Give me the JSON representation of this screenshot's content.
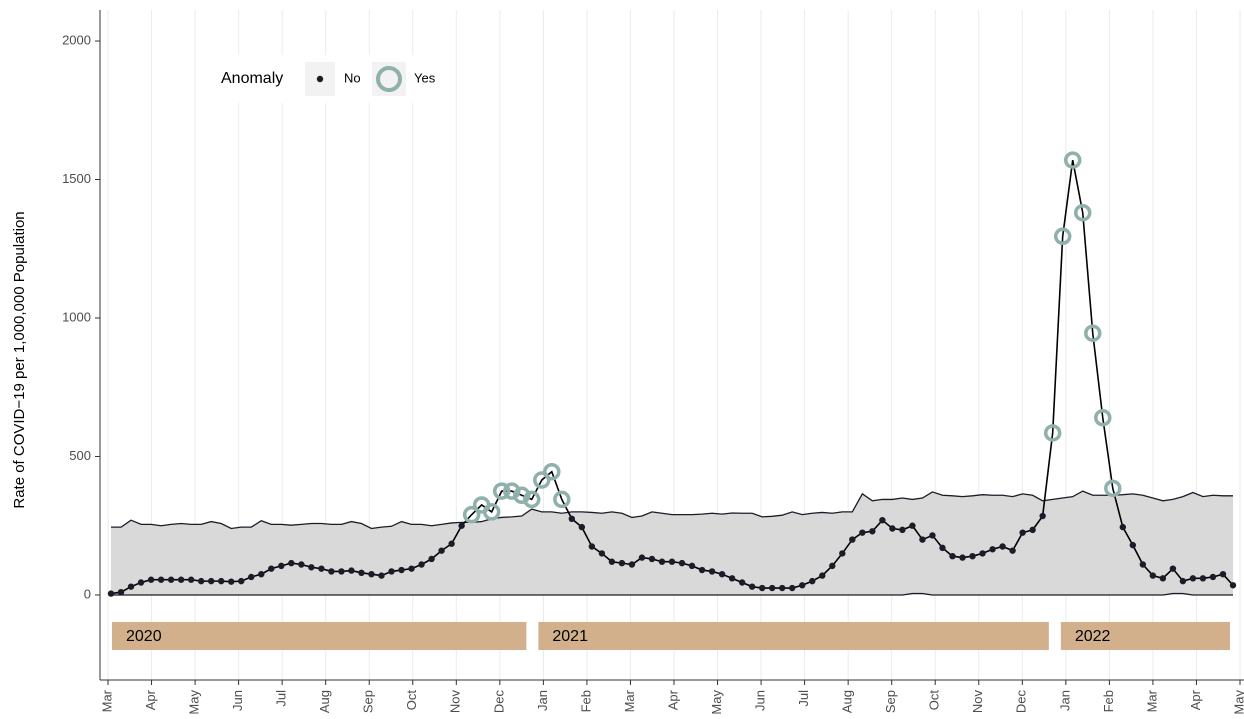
{
  "chart_data": {
    "type": "line",
    "ylabel": "Rate of COVID−19 per 1,000,000 Population",
    "ylim": [
      -307,
      2112
    ],
    "yticks": [
      0,
      500,
      1000,
      1500,
      2000
    ],
    "months": [
      "Mar",
      "Apr",
      "May",
      "Jun",
      "Jul",
      "Aug",
      "Sep",
      "Oct",
      "Nov",
      "Dec",
      "Jan",
      "Feb",
      "Mar",
      "Apr",
      "May",
      "Jun",
      "Jul",
      "Aug",
      "Sep",
      "Oct",
      "Nov",
      "Dec",
      "Jan",
      "Feb",
      "Mar",
      "Apr",
      "May"
    ],
    "years": [
      "2020",
      "2021",
      "2022"
    ],
    "legend": {
      "title": "Anomaly",
      "entries": [
        "No",
        "Yes"
      ]
    },
    "grid": true,
    "line_color": "#1c1c28",
    "band_color": "#d9d9d9",
    "anomaly_color": "#8fb0ab",
    "year_color": "#d2b08c",
    "values": [
      5,
      10,
      30,
      45,
      55,
      55,
      55,
      55,
      55,
      50,
      50,
      50,
      48,
      50,
      65,
      75,
      95,
      105,
      115,
      110,
      100,
      95,
      85,
      85,
      88,
      80,
      75,
      70,
      85,
      90,
      95,
      110,
      130,
      160,
      185,
      250,
      290,
      325,
      300,
      375,
      375,
      360,
      345,
      415,
      445,
      345,
      275,
      245,
      175,
      150,
      120,
      115,
      110,
      135,
      130,
      120,
      120,
      115,
      105,
      90,
      85,
      75,
      60,
      45,
      30,
      25,
      25,
      25,
      25,
      35,
      50,
      70,
      105,
      150,
      200,
      225,
      230,
      270,
      240,
      235,
      250,
      200,
      215,
      170,
      140,
      135,
      140,
      150,
      165,
      175,
      160,
      225,
      235,
      285,
      585,
      1295,
      1570,
      1380,
      945,
      640,
      385,
      245,
      180,
      110,
      70,
      60,
      95,
      50,
      60,
      60,
      65,
      75,
      35
    ],
    "anomaly": [
      false,
      false,
      false,
      false,
      false,
      false,
      false,
      false,
      false,
      false,
      false,
      false,
      false,
      false,
      false,
      false,
      false,
      false,
      false,
      false,
      false,
      false,
      false,
      false,
      false,
      false,
      false,
      false,
      false,
      false,
      false,
      false,
      false,
      false,
      false,
      false,
      true,
      true,
      true,
      true,
      true,
      true,
      true,
      true,
      true,
      true,
      false,
      false,
      false,
      false,
      false,
      false,
      false,
      false,
      false,
      false,
      false,
      false,
      false,
      false,
      false,
      false,
      false,
      false,
      false,
      false,
      false,
      false,
      false,
      false,
      false,
      false,
      false,
      false,
      false,
      false,
      false,
      false,
      false,
      false,
      false,
      false,
      false,
      false,
      false,
      false,
      false,
      false,
      false,
      false,
      false,
      false,
      false,
      false,
      true,
      true,
      true,
      true,
      true,
      true,
      true,
      false,
      false,
      false,
      false,
      false,
      false,
      false,
      false,
      false,
      false,
      false,
      false
    ],
    "upper": [
      245,
      245,
      270,
      255,
      255,
      250,
      255,
      258,
      255,
      255,
      265,
      258,
      240,
      245,
      245,
      268,
      255,
      255,
      252,
      255,
      258,
      258,
      255,
      255,
      265,
      258,
      240,
      245,
      248,
      265,
      255,
      255,
      250,
      255,
      260,
      262,
      262,
      265,
      275,
      280,
      282,
      285,
      310,
      300,
      300,
      295,
      300,
      300,
      298,
      295,
      300,
      295,
      280,
      285,
      300,
      295,
      290,
      290,
      290,
      292,
      295,
      292,
      296,
      295,
      295,
      282,
      284,
      288,
      300,
      290,
      295,
      298,
      295,
      300,
      300,
      365,
      340,
      345,
      345,
      350,
      345,
      350,
      372,
      360,
      358,
      355,
      358,
      362,
      360,
      360,
      355,
      365,
      360,
      340,
      345,
      350,
      355,
      375,
      360,
      360,
      360,
      362,
      365,
      360,
      350,
      340,
      345,
      355,
      370,
      355,
      360,
      358,
      358
    ],
    "lower": [
      0,
      0,
      0,
      0,
      0,
      0,
      0,
      0,
      0,
      0,
      0,
      0,
      0,
      0,
      0,
      0,
      0,
      0,
      0,
      0,
      0,
      0,
      0,
      0,
      0,
      0,
      0,
      0,
      0,
      0,
      0,
      0,
      0,
      0,
      0,
      0,
      0,
      0,
      0,
      0,
      0,
      0,
      0,
      0,
      0,
      0,
      0,
      0,
      0,
      0,
      0,
      0,
      0,
      0,
      0,
      0,
      0,
      0,
      0,
      0,
      0,
      0,
      0,
      0,
      0,
      0,
      0,
      0,
      0,
      0,
      0,
      0,
      0,
      0,
      0,
      0,
      0,
      0,
      0,
      0,
      5,
      5,
      0,
      0,
      0,
      0,
      0,
      0,
      0,
      0,
      0,
      0,
      0,
      0,
      0,
      0,
      0,
      0,
      0,
      0,
      0,
      0,
      0,
      0,
      0,
      0,
      5,
      5,
      0,
      0,
      0,
      0,
      0
    ]
  }
}
